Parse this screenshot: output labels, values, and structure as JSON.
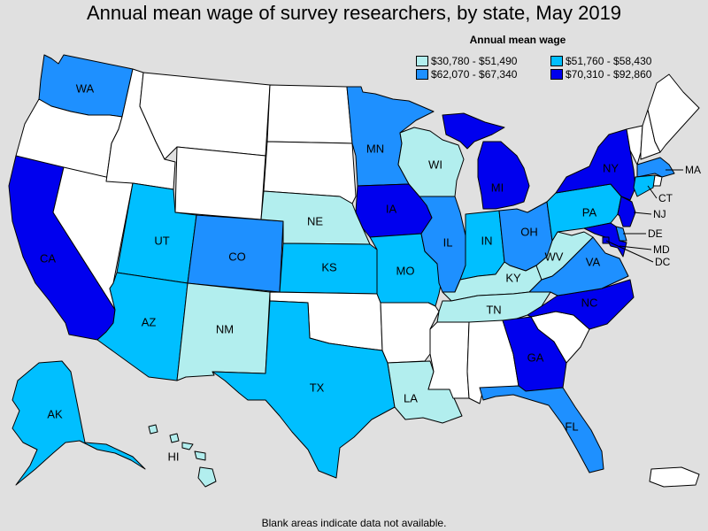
{
  "title": "Annual mean wage of survey researchers, by state, May 2019",
  "legend": {
    "title": "Annual mean wage",
    "items": [
      {
        "label": "$30,780 - $51,490",
        "color": "#b2eeee"
      },
      {
        "label": "$51,760 - $58,430",
        "color": "#00bfff"
      },
      {
        "label": "$62,070 - $67,340",
        "color": "#1e90ff"
      },
      {
        "label": "$70,310 - $92,860",
        "color": "#0000ee"
      }
    ]
  },
  "footnote": "Blank areas indicate data not available.",
  "colors": {
    "no_data": "#ffffff",
    "background": "#e0e0e0"
  },
  "states": [
    {
      "abbr": "WA",
      "tier": 3
    },
    {
      "abbr": "OR",
      "tier": 0
    },
    {
      "abbr": "CA",
      "tier": 4
    },
    {
      "abbr": "NV",
      "tier": 0
    },
    {
      "abbr": "ID",
      "tier": 0
    },
    {
      "abbr": "MT",
      "tier": 0
    },
    {
      "abbr": "WY",
      "tier": 0
    },
    {
      "abbr": "UT",
      "tier": 2
    },
    {
      "abbr": "AZ",
      "tier": 2
    },
    {
      "abbr": "CO",
      "tier": 3
    },
    {
      "abbr": "NM",
      "tier": 1
    },
    {
      "abbr": "ND",
      "tier": 0
    },
    {
      "abbr": "SD",
      "tier": 0
    },
    {
      "abbr": "NE",
      "tier": 1
    },
    {
      "abbr": "KS",
      "tier": 2
    },
    {
      "abbr": "OK",
      "tier": 0
    },
    {
      "abbr": "TX",
      "tier": 2
    },
    {
      "abbr": "MN",
      "tier": 3
    },
    {
      "abbr": "IA",
      "tier": 4
    },
    {
      "abbr": "MO",
      "tier": 2
    },
    {
      "abbr": "AR",
      "tier": 0
    },
    {
      "abbr": "LA",
      "tier": 1
    },
    {
      "abbr": "WI",
      "tier": 1
    },
    {
      "abbr": "IL",
      "tier": 3
    },
    {
      "abbr": "MI",
      "tier": 4
    },
    {
      "abbr": "IN",
      "tier": 2
    },
    {
      "abbr": "OH",
      "tier": 3
    },
    {
      "abbr": "KY",
      "tier": 1
    },
    {
      "abbr": "TN",
      "tier": 1
    },
    {
      "abbr": "MS",
      "tier": 0
    },
    {
      "abbr": "AL",
      "tier": 0
    },
    {
      "abbr": "GA",
      "tier": 4
    },
    {
      "abbr": "FL",
      "tier": 3
    },
    {
      "abbr": "SC",
      "tier": 0
    },
    {
      "abbr": "NC",
      "tier": 4
    },
    {
      "abbr": "VA",
      "tier": 3
    },
    {
      "abbr": "WV",
      "tier": 1
    },
    {
      "abbr": "PA",
      "tier": 2
    },
    {
      "abbr": "NY",
      "tier": 4
    },
    {
      "abbr": "VT",
      "tier": 0
    },
    {
      "abbr": "NH",
      "tier": 0
    },
    {
      "abbr": "ME",
      "tier": 0
    },
    {
      "abbr": "MA",
      "tier": 3
    },
    {
      "abbr": "RI",
      "tier": 0
    },
    {
      "abbr": "CT",
      "tier": 2
    },
    {
      "abbr": "NJ",
      "tier": 4
    },
    {
      "abbr": "DE",
      "tier": 3
    },
    {
      "abbr": "MD",
      "tier": 4
    },
    {
      "abbr": "DC",
      "tier": 4
    },
    {
      "abbr": "AK",
      "tier": 2
    },
    {
      "abbr": "HI",
      "tier": 1
    },
    {
      "abbr": "PR",
      "tier": 0
    }
  ],
  "labels": {
    "WA": "WA",
    "CA": "CA",
    "UT": "UT",
    "AZ": "AZ",
    "CO": "CO",
    "NM": "NM",
    "NE": "NE",
    "KS": "KS",
    "TX": "TX",
    "MN": "MN",
    "IA": "IA",
    "MO": "MO",
    "LA": "LA",
    "WI": "WI",
    "IL": "IL",
    "MI": "MI",
    "IN": "IN",
    "OH": "OH",
    "KY": "KY",
    "TN": "TN",
    "GA": "GA",
    "FL": "FL",
    "NC": "NC",
    "VA": "VA",
    "WV": "WV",
    "PA": "PA",
    "NY": "NY",
    "MA": "MA",
    "CT": "CT",
    "NJ": "NJ",
    "DE": "DE",
    "MD": "MD",
    "DC": "DC",
    "AK": "AK",
    "HI": "HI"
  }
}
